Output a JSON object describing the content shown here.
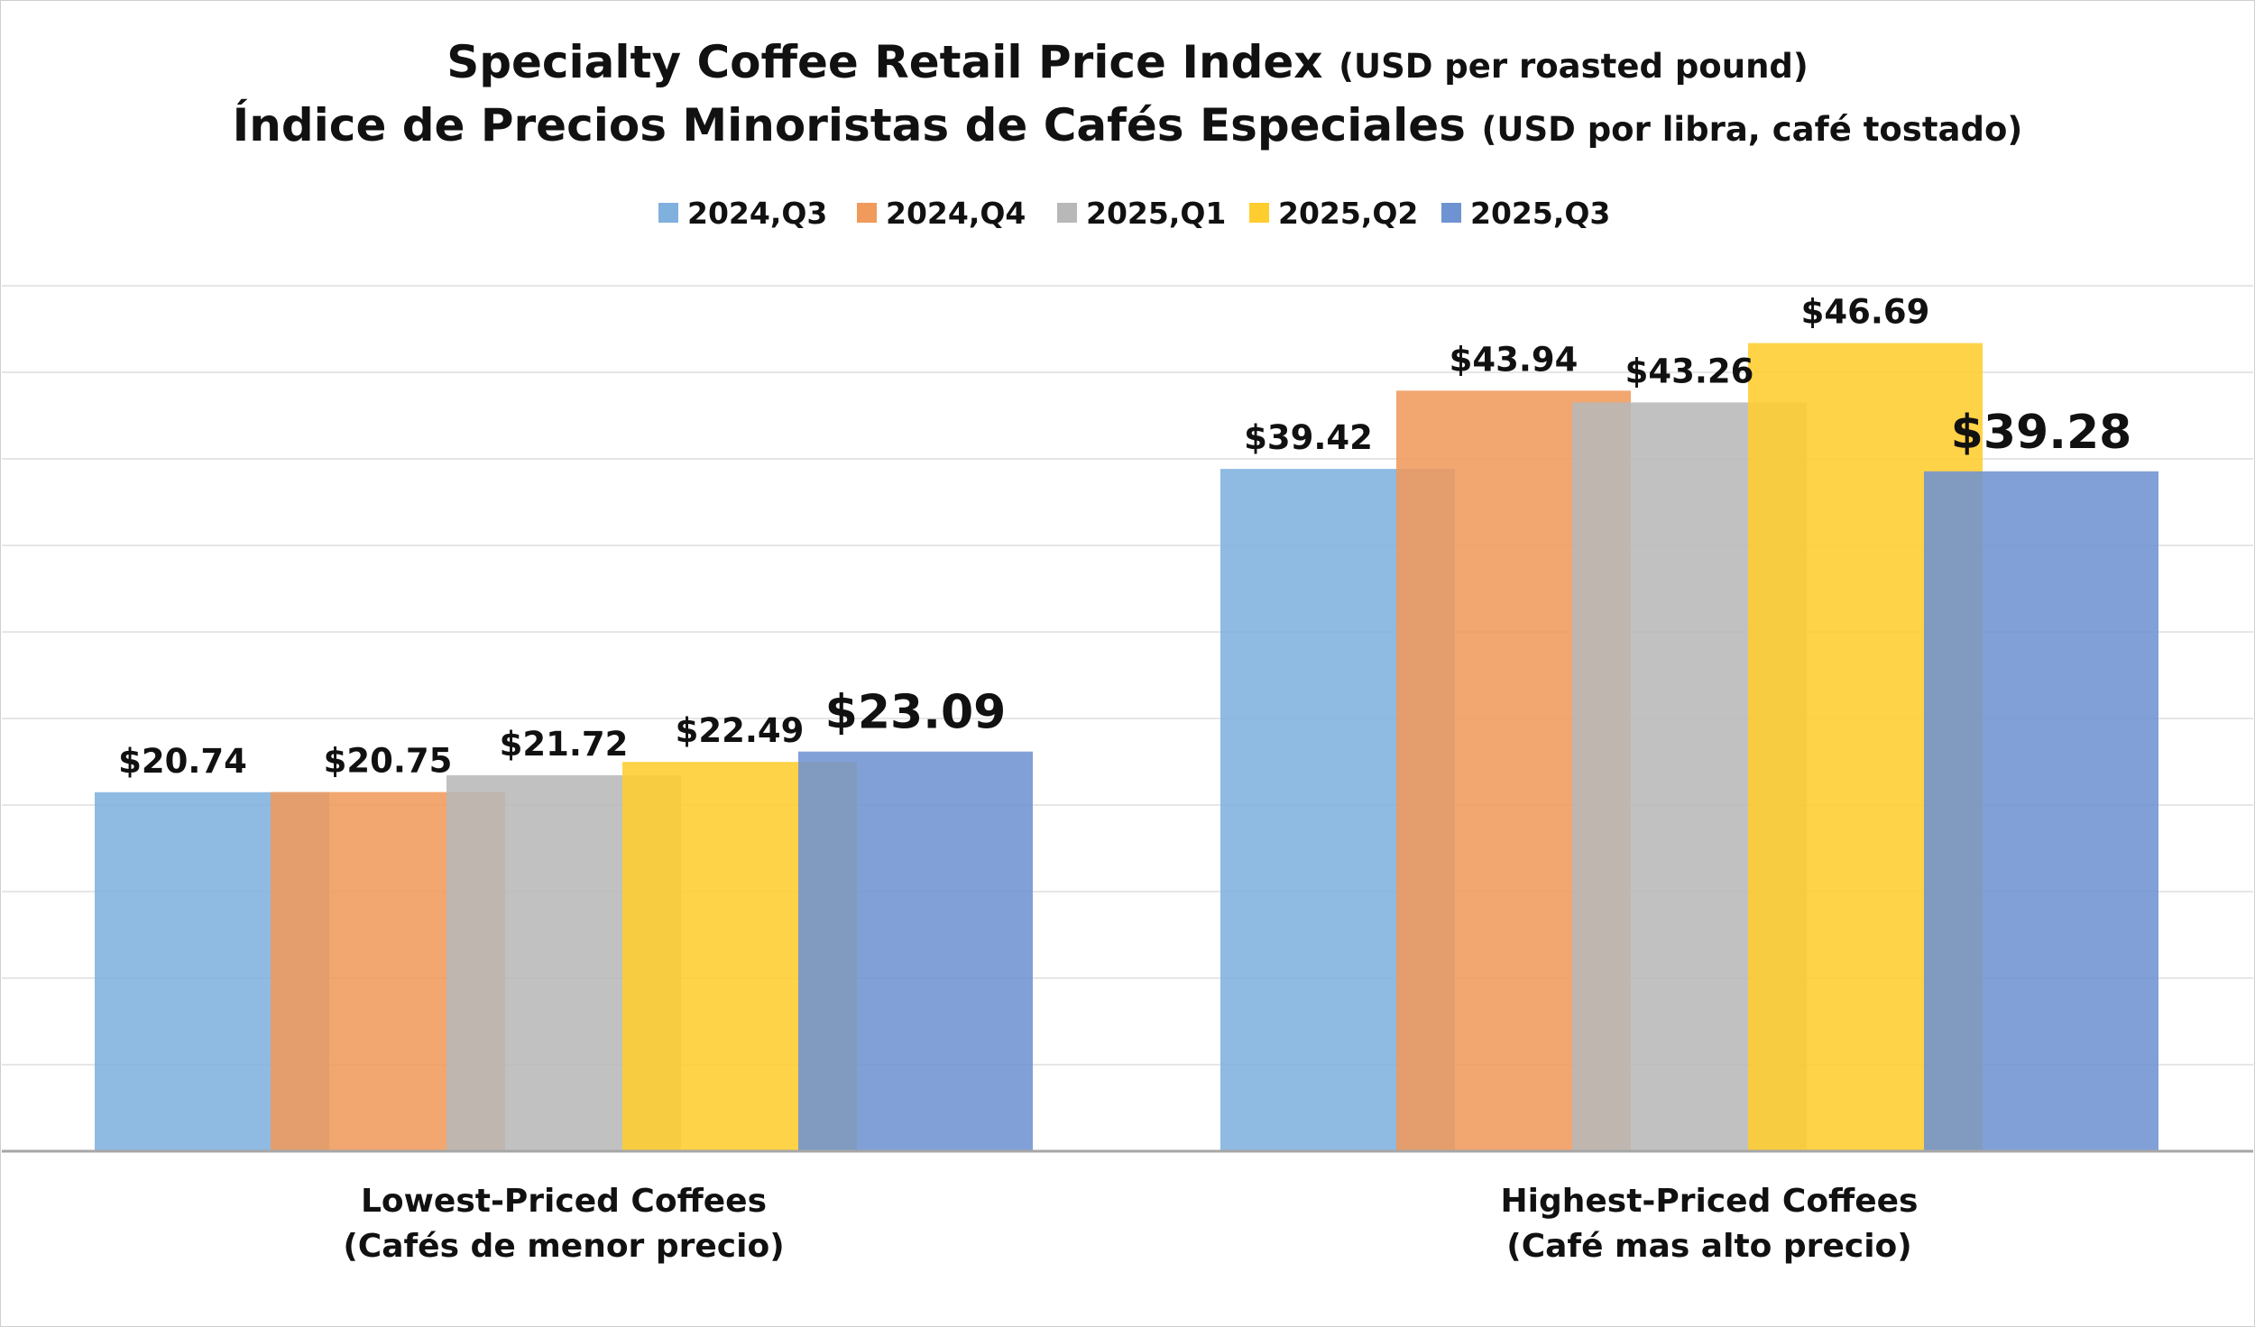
{
  "chart_data": {
    "type": "bar",
    "title": {
      "line1_main": "Specialty Coffee Retail Price Index",
      "line1_sub": "(USD per roasted pound)",
      "line2_main": "Índice de Precios Minoristas de Cafés Especiales",
      "line2_sub": "(USD por libra, café tostado)"
    },
    "legend_position": "top-center",
    "gridlines": true,
    "ylim": [
      0,
      50
    ],
    "categories": [
      {
        "line1": "Lowest-Priced Coffees",
        "line2": "(Cafés de menor precio)"
      },
      {
        "line1": "Highest-Priced Coffees",
        "line2": "(Café mas alto precio)"
      }
    ],
    "series": [
      {
        "name": "2024,Q3",
        "color": "#7fb0de",
        "values": [
          20.74,
          39.42
        ],
        "labels": [
          "$20.74",
          "$39.42"
        ]
      },
      {
        "name": "2024,Q4",
        "color": "#f09a5c",
        "values": [
          20.75,
          43.94
        ],
        "labels": [
          "$20.75",
          "$43.94"
        ]
      },
      {
        "name": "2025,Q1",
        "color": "#b8b8b8",
        "values": [
          21.72,
          43.26
        ],
        "labels": [
          "$21.72",
          "$43.26"
        ]
      },
      {
        "name": "2025,Q2",
        "color": "#ffcd2e",
        "values": [
          22.49,
          46.69
        ],
        "labels": [
          "$22.49",
          "$46.69"
        ]
      },
      {
        "name": "2025,Q3",
        "color": "#6f93d2",
        "values": [
          23.09,
          39.28
        ],
        "labels": [
          "$23.09",
          "$39.28"
        ],
        "emphasized": true
      }
    ]
  }
}
